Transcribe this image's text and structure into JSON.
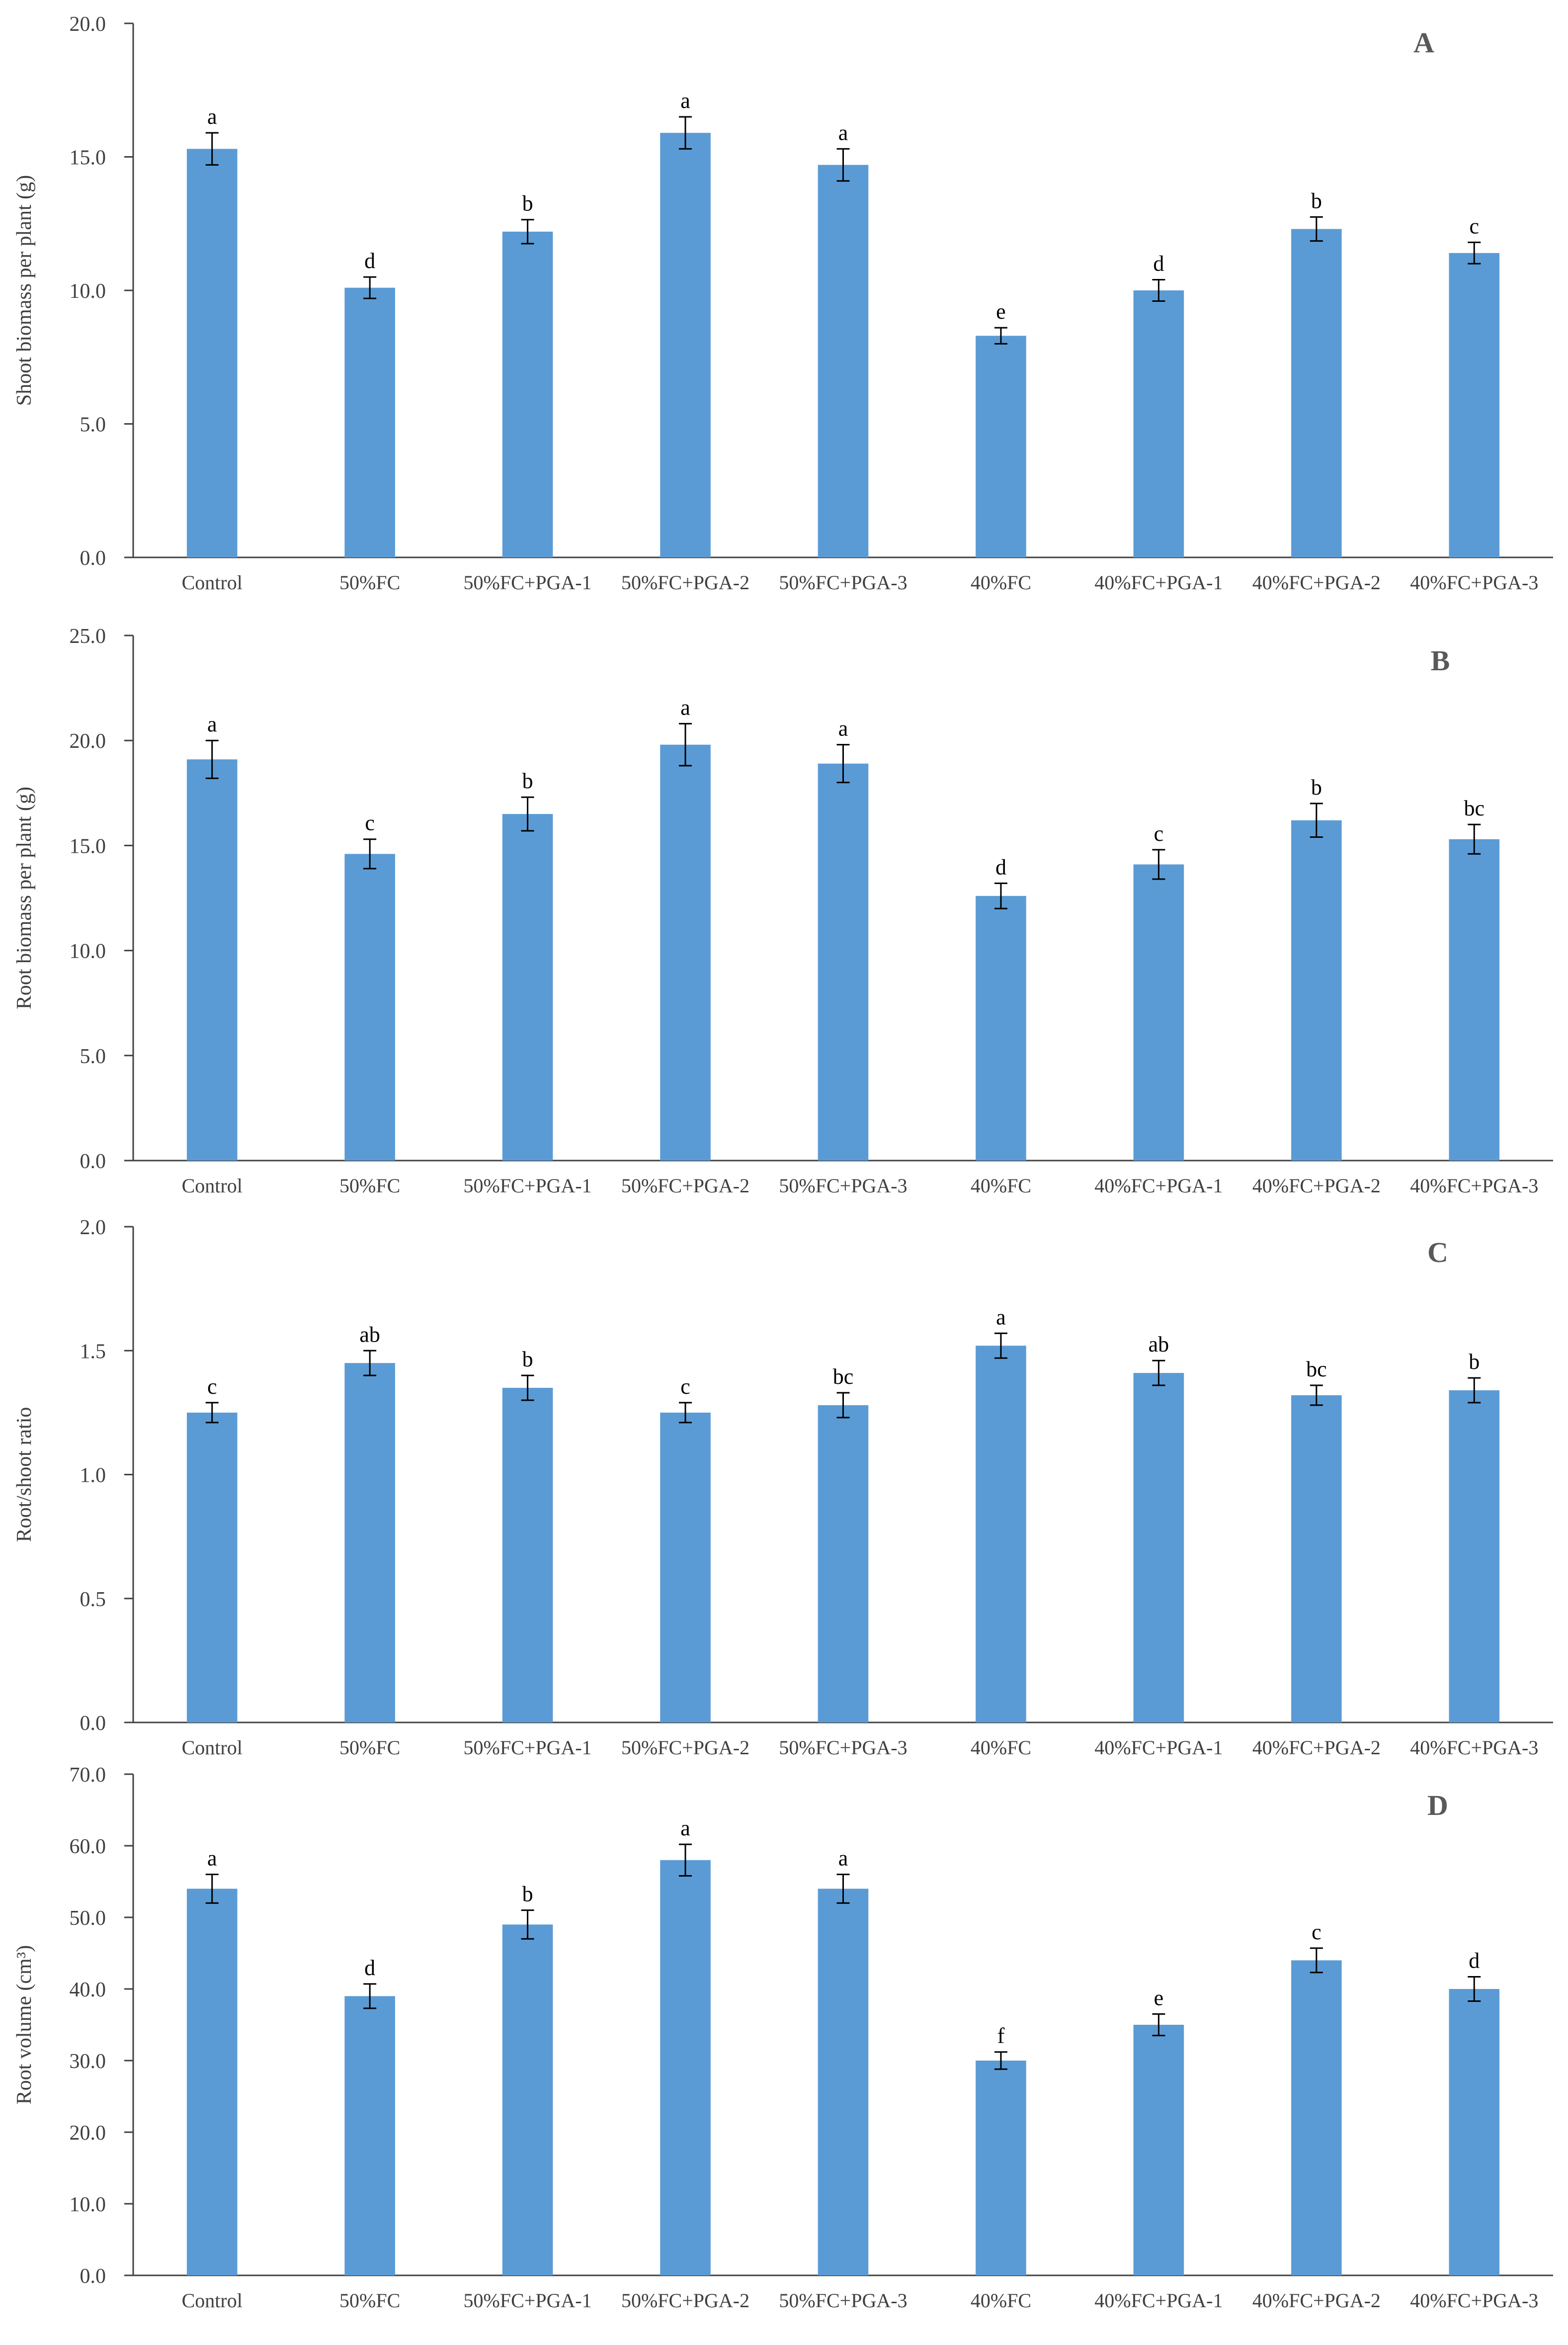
{
  "colors": {
    "bar": "#5B9BD5",
    "axis": "#404040",
    "text": "#404040",
    "error_bar": "#000000"
  },
  "chart_data": [
    {
      "panel": "A",
      "type": "bar",
      "title": "",
      "xlabel": "",
      "ylabel": "Shoot biomass per plant (g)",
      "ylim": [
        0,
        20
      ],
      "yticks": [
        "0.0",
        "5.0",
        "10.0",
        "15.0",
        "20.0"
      ],
      "grid": false,
      "categories": [
        "Control",
        "50%FC",
        "50%FC+PGA-1",
        "50%FC+PGA-2",
        "50%FC+PGA-3",
        "40%FC",
        "40%FC+PGA-1",
        "40%FC+PGA-2",
        "40%FC+PGA-3"
      ],
      "values": [
        15.3,
        10.1,
        12.2,
        15.9,
        14.7,
        8.3,
        10.0,
        12.3,
        11.4
      ],
      "errors": [
        0.6,
        0.4,
        0.45,
        0.6,
        0.6,
        0.3,
        0.4,
        0.45,
        0.4
      ],
      "letters": [
        "a",
        "d",
        "b",
        "a",
        "a",
        "e",
        "d",
        "b",
        "c"
      ]
    },
    {
      "panel": "B",
      "type": "bar",
      "title": "",
      "xlabel": "",
      "ylabel": "Root biomass per plant (g)",
      "ylim": [
        0,
        25
      ],
      "yticks": [
        "0.0",
        "5.0",
        "10.0",
        "15.0",
        "20.0",
        "25.0"
      ],
      "grid": false,
      "categories": [
        "Control",
        "50%FC",
        "50%FC+PGA-1",
        "50%FC+PGA-2",
        "50%FC+PGA-3",
        "40%FC",
        "40%FC+PGA-1",
        "40%FC+PGA-2",
        "40%FC+PGA-3"
      ],
      "values": [
        19.1,
        14.6,
        16.5,
        19.8,
        18.9,
        12.6,
        14.1,
        16.2,
        15.3
      ],
      "errors": [
        0.9,
        0.7,
        0.8,
        1.0,
        0.9,
        0.6,
        0.7,
        0.8,
        0.7
      ],
      "letters": [
        "a",
        "c",
        "b",
        "a",
        "a",
        "d",
        "c",
        "b",
        "bc"
      ]
    },
    {
      "panel": "C",
      "type": "bar",
      "title": "",
      "xlabel": "",
      "ylabel": "Root/shoot ratio",
      "ylim": [
        0,
        2
      ],
      "yticks": [
        "0.0",
        "0.5",
        "1.0",
        "1.5",
        "2.0"
      ],
      "grid": false,
      "categories": [
        "Control",
        "50%FC",
        "50%FC+PGA-1",
        "50%FC+PGA-2",
        "50%FC+PGA-3",
        "40%FC",
        "40%FC+PGA-1",
        "40%FC+PGA-2",
        "40%FC+PGA-3"
      ],
      "values": [
        1.25,
        1.45,
        1.35,
        1.25,
        1.28,
        1.52,
        1.41,
        1.32,
        1.34
      ],
      "errors": [
        0.04,
        0.05,
        0.05,
        0.04,
        0.05,
        0.05,
        0.05,
        0.04,
        0.05
      ],
      "letters": [
        "c",
        "ab",
        "b",
        "c",
        "bc",
        "a",
        "ab",
        "bc",
        "b"
      ]
    },
    {
      "panel": "D",
      "type": "bar",
      "title": "",
      "xlabel": "",
      "ylabel": "Root volume (cm³)",
      "ylim": [
        0,
        70
      ],
      "yticks": [
        "0.0",
        "10.0",
        "20.0",
        "30.0",
        "40.0",
        "50.0",
        "60.0",
        "70.0"
      ],
      "grid": false,
      "categories": [
        "Control",
        "50%FC",
        "50%FC+PGA-1",
        "50%FC+PGA-2",
        "50%FC+PGA-3",
        "40%FC",
        "40%FC+PGA-1",
        "40%FC+PGA-2",
        "40%FC+PGA-3"
      ],
      "values": [
        54,
        39,
        49,
        58,
        54,
        30,
        35,
        44,
        40
      ],
      "errors": [
        2.0,
        1.7,
        2.0,
        2.2,
        2.0,
        1.2,
        1.5,
        1.7,
        1.7
      ],
      "letters": [
        "a",
        "d",
        "b",
        "a",
        "a",
        "f",
        "e",
        "c",
        "d"
      ]
    }
  ]
}
